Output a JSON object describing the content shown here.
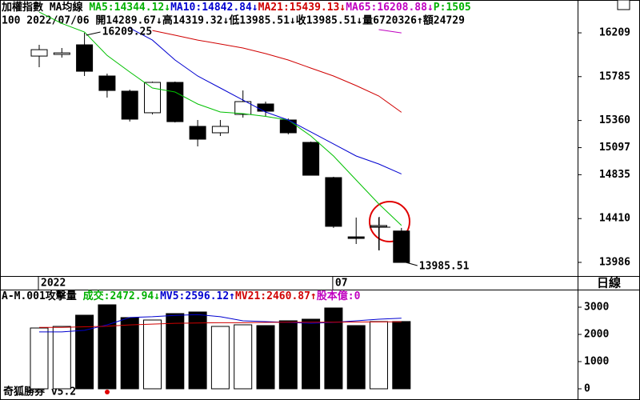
{
  "header": {
    "segments": [
      {
        "text": "加權指數 MA均線 ",
        "color": "#000000"
      },
      {
        "text": "MA5:14344.12↓",
        "color": "#00b000"
      },
      {
        "text": "MA10:14842.84↓",
        "color": "#0000d0"
      },
      {
        "text": "MA21:15439.13↓",
        "color": "#d00000"
      },
      {
        "text": "MA65:16208.88↓",
        "color": "#c000c0"
      },
      {
        "text": "P:1505",
        "color": "#00b000"
      }
    ],
    "info": "100 2022/07/06 開14289.67↓高14319.32↓低13985.51↓收13985.51↓量6720326↑額24729"
  },
  "period_button": "日線",
  "footer": "奇狐勝券 v5.2",
  "chart_data": [
    {
      "type": "candlestick",
      "categories": [
        "2022",
        null,
        null,
        null,
        null,
        null,
        null,
        null,
        null,
        null,
        null,
        null,
        null,
        "07",
        null,
        null,
        null
      ],
      "open": [
        15984,
        16000,
        16093,
        15791,
        15644,
        15435,
        15729,
        15303,
        15241,
        15419,
        15520,
        15365,
        15148,
        14807,
        14233,
        14335,
        14289.67
      ],
      "high": [
        16093,
        16062,
        16209.25,
        15814,
        15659,
        15737,
        15737,
        15365,
        15365,
        15651,
        15543,
        15380,
        15156,
        14815,
        14420,
        14420,
        14319.32
      ],
      "low": [
        15876,
        15969,
        15791,
        15582,
        15350,
        15419,
        15341,
        15109,
        15210,
        15388,
        15404,
        15226,
        14830,
        14320,
        14164,
        14103,
        13985.51
      ],
      "close": [
        16046,
        16015,
        15837,
        15651,
        15373,
        15729,
        15349,
        15179,
        15303,
        15543,
        15450,
        15241,
        14830,
        14335,
        14218,
        14343,
        13985.51
      ],
      "max_label": "16209.25",
      "min_label": "13985.51",
      "lines": [
        {
          "name": "MA5",
          "color": "#00c000",
          "values": [
            16410,
            16300,
            16217,
            15990,
            15830,
            15675,
            15636,
            15520,
            15442,
            15427,
            15400,
            15365,
            15210,
            15016,
            14784,
            14552,
            14344.12
          ]
        },
        {
          "name": "MA10",
          "color": "#0000d0",
          "values": [
            null,
            null,
            null,
            null,
            16255,
            16139,
            15946,
            15791,
            15675,
            15558,
            15442,
            15365,
            15249,
            15133,
            15016,
            14939,
            14842.84
          ]
        },
        {
          "name": "MA21",
          "color": "#d00000",
          "values": [
            null,
            null,
            null,
            null,
            null,
            16232,
            16186,
            16139,
            16101,
            16062,
            16008,
            15946,
            15868,
            15791,
            15698,
            15597,
            15439.13
          ]
        },
        {
          "name": "MA65",
          "color": "#c000c0",
          "values": [
            null,
            null,
            null,
            null,
            null,
            null,
            null,
            null,
            null,
            null,
            null,
            null,
            null,
            null,
            null,
            16240,
            16208.88
          ]
        }
      ],
      "ylim": [
        13854,
        16527
      ],
      "yticks": [
        16209,
        15785,
        15360,
        15097,
        14835,
        14410,
        13986
      ]
    },
    {
      "type": "bar",
      "title_segments": [
        {
          "text": "A-M.001攻擊量 ",
          "color": "#000000"
        },
        {
          "text": "成交:2472.94↓",
          "color": "#00b000"
        },
        {
          "text": "MV5:2596.12↑",
          "color": "#0000d0"
        },
        {
          "text": "MV21:2460.87↑",
          "color": "#d00000"
        },
        {
          "text": "股本億:0",
          "color": "#c000c0"
        }
      ],
      "values": [
        2235,
        2294,
        2706,
        3088,
        2618,
        2529,
        2765,
        2824,
        2294,
        2353,
        2324,
        2500,
        2559,
        2971,
        2324,
        2471,
        2472.94
      ],
      "lines": [
        {
          "name": "MV5",
          "color": "#0000d0",
          "values": [
            2090,
            2090,
            2150,
            2350,
            2620,
            2650,
            2700,
            2730,
            2650,
            2500,
            2470,
            2440,
            2410,
            2440,
            2500,
            2560,
            2596.12
          ]
        },
        {
          "name": "MV21",
          "color": "#d00000",
          "values": [
            2260,
            2260,
            2280,
            2300,
            2350,
            2380,
            2410,
            2420,
            2430,
            2430,
            2440,
            2450,
            2450,
            2450,
            2455,
            2458,
            2460.87
          ]
        }
      ],
      "ylim": [
        -412,
        3647
      ],
      "yticks": [
        0,
        1000,
        2000,
        3000
      ]
    }
  ]
}
